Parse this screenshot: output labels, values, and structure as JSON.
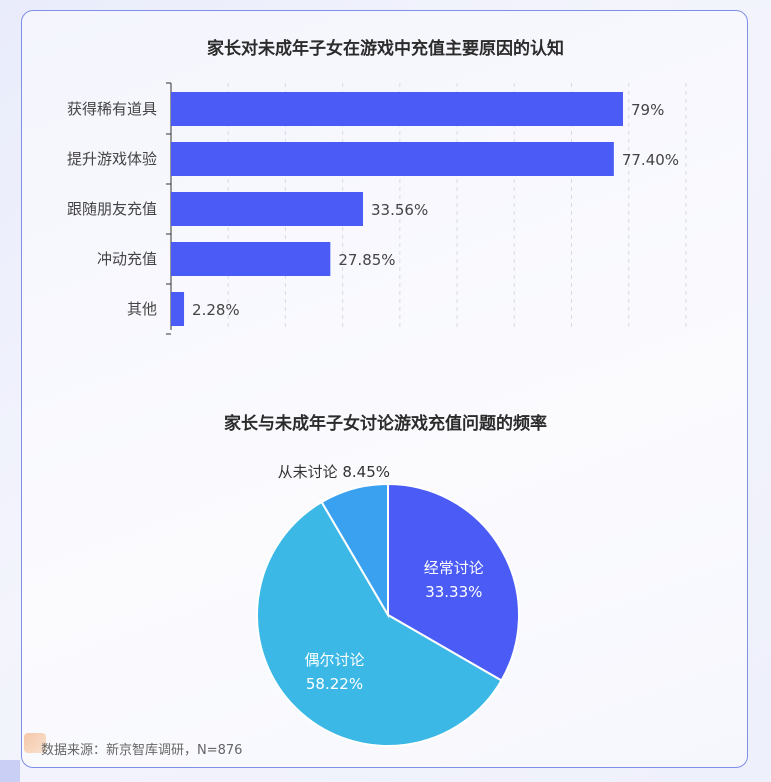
{
  "chart_data": [
    {
      "type": "bar",
      "orientation": "horizontal",
      "title": "家长对未成年子女在游戏中充值主要原因的认知",
      "categories": [
        "获得稀有道具",
        "提升游戏体验",
        "跟随朋友充值",
        "冲动充值",
        "其他"
      ],
      "values": [
        79,
        77.4,
        33.56,
        27.85,
        2.28
      ],
      "labels": [
        "79%",
        "77.40%",
        "33.56%",
        "27.85%",
        "2.28%"
      ],
      "xlim": [
        0,
        90
      ],
      "grid": true,
      "color": "#4a5cf5"
    },
    {
      "type": "pie",
      "title": "家长与未成年子女讨论游戏充值问题的频率",
      "slices": [
        {
          "name": "经常讨论",
          "value": 33.33,
          "label": "33.33%",
          "color": "#4a5cf5"
        },
        {
          "name": "偶尔讨论",
          "value": 58.22,
          "label": "58.22%",
          "color": "#3bb8e6"
        },
        {
          "name": "从未讨论",
          "value": 8.45,
          "label": "8.45%",
          "color": "#3aa1f0"
        }
      ]
    }
  ],
  "source": "数据来源：新京智库调研，N=876"
}
